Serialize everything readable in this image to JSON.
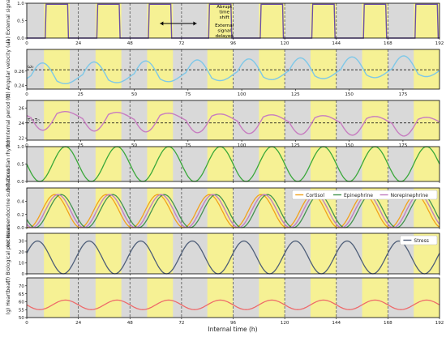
{
  "xlabel": "Internal time (h)",
  "colors": {
    "light_band": "#f6f194",
    "dark_band": "#d9d9d9",
    "dashed": "#555555",
    "pulse": "#6b4fa6",
    "omega": "#7ec8e8",
    "period": "#c77cc0",
    "circadian": "#3aa83a",
    "cortisol": "#f2a21b",
    "epinephrine": "#44944f",
    "norepinephrine": "#c07bbf",
    "stress": "#4e5e78",
    "heartbeat": "#ee6a6a",
    "annot": "#000000"
  },
  "annotation": {
    "lines": [
      "Abrupt",
      "time",
      "shift",
      "External",
      "signal",
      "delayed"
    ]
  },
  "chart_data": [
    {
      "panel": "a",
      "type": "line",
      "ylabel": "(a) External signal",
      "xlim": [
        0,
        192
      ],
      "ylim": [
        0,
        1
      ],
      "xticks": [
        0,
        24,
        48,
        72,
        96,
        120,
        144,
        168,
        192
      ],
      "yticks": [
        0,
        0.5,
        1
      ],
      "ytick_labels": [
        "0.0",
        "0.5",
        "1.0"
      ],
      "light_intervals": [
        [
          8,
          20
        ],
        [
          32,
          44
        ],
        [
          56,
          68
        ],
        [
          84,
          96
        ],
        [
          108,
          120
        ],
        [
          132,
          144
        ],
        [
          156,
          168
        ],
        [
          180,
          192
        ]
      ],
      "dashed_x": [
        24,
        48,
        72,
        96,
        120,
        144,
        168
      ],
      "series": [
        {
          "color_key": "pulse",
          "kind": "pulse_on_light"
        }
      ]
    },
    {
      "panel": "b",
      "type": "line",
      "ylabel": "(b) Angular velocity (ω)",
      "xlim": [
        0,
        192
      ],
      "ylim": [
        0.235,
        0.29
      ],
      "xticks": [
        0,
        25,
        50,
        75,
        100,
        125,
        150,
        175
      ],
      "yticks": [
        0.24,
        0.26
      ],
      "ytick_labels": [
        "0.24",
        "0.26"
      ],
      "hline": {
        "y": 0.2618,
        "label": "ω₀"
      },
      "light_intervals": [
        [
          8,
          20
        ],
        [
          32,
          44
        ],
        [
          56,
          68
        ],
        [
          84,
          96
        ],
        [
          108,
          120
        ],
        [
          132,
          144
        ],
        [
          156,
          168
        ],
        [
          180,
          192
        ]
      ],
      "dashed_x": [
        24,
        48,
        72,
        96,
        120,
        144,
        168
      ],
      "series": [
        {
          "color_key": "omega",
          "kind": "omega"
        }
      ]
    },
    {
      "panel": "c",
      "type": "line",
      "ylabel": "(c) Internal period (τ)",
      "xlim": [
        0,
        192
      ],
      "ylim": [
        21.7,
        27.0
      ],
      "xticks": [
        0,
        25,
        50,
        75,
        100,
        125,
        150,
        175
      ],
      "yticks": [
        22,
        24,
        26
      ],
      "ytick_labels": [
        "22",
        "24",
        "26"
      ],
      "hline": {
        "y": 24,
        "label": "τ=τ₀"
      },
      "light_intervals": [
        [
          8,
          20
        ],
        [
          32,
          44
        ],
        [
          56,
          68
        ],
        [
          84,
          96
        ],
        [
          108,
          120
        ],
        [
          132,
          144
        ],
        [
          156,
          168
        ],
        [
          180,
          192
        ]
      ],
      "dashed_x": [
        24,
        48,
        72,
        96,
        120,
        144,
        168
      ],
      "series": [
        {
          "color_key": "period",
          "kind": "period"
        }
      ]
    },
    {
      "panel": "d",
      "type": "line",
      "ylabel": "(d) Circadian rhythm",
      "xlim": [
        0,
        192
      ],
      "ylim": [
        0,
        1
      ],
      "yticks": [
        0,
        0.5,
        1
      ],
      "ytick_labels": [
        "0.0",
        "0.5",
        "1.0"
      ],
      "light_intervals": [
        [
          8,
          20
        ],
        [
          32,
          44
        ],
        [
          56,
          68
        ],
        [
          84,
          96
        ],
        [
          108,
          120
        ],
        [
          132,
          144
        ],
        [
          156,
          168
        ],
        [
          180,
          192
        ]
      ],
      "dashed_x": [
        24,
        48,
        72,
        96,
        120,
        144,
        168
      ],
      "series": [
        {
          "color_key": "circadian",
          "kind": "cos",
          "amp": 0.5,
          "offset": 0.5,
          "peak": 18,
          "period": 24
        }
      ]
    },
    {
      "panel": "e",
      "type": "line",
      "ylabel": "(e) Neuroendocrine substances",
      "xlim": [
        0,
        192
      ],
      "ylim": [
        0,
        0.6
      ],
      "yticks": [
        0,
        0.2,
        0.4
      ],
      "ytick_labels": [
        "0.0",
        "0.2",
        "0.4"
      ],
      "legend": {
        "placement": "top-right"
      },
      "light_intervals": [
        [
          8,
          20
        ],
        [
          32,
          44
        ],
        [
          56,
          68
        ],
        [
          84,
          96
        ],
        [
          108,
          120
        ],
        [
          132,
          144
        ],
        [
          156,
          168
        ],
        [
          180,
          192
        ]
      ],
      "dashed_x": [
        24,
        48,
        72,
        96,
        120,
        144,
        168
      ],
      "series": [
        {
          "name": "Cortisol",
          "color_key": "cortisol",
          "kind": "cos",
          "amp": 0.25,
          "offset": 0.25,
          "peak": 13,
          "period": 24
        },
        {
          "name": "Epinephrine",
          "color_key": "epinephrine",
          "kind": "cos",
          "amp": 0.25,
          "offset": 0.25,
          "peak": 16,
          "period": 24
        },
        {
          "name": "Norepinephrine",
          "color_key": "norepinephrine",
          "kind": "cos",
          "amp": 0.25,
          "offset": 0.25,
          "peak": 14.5,
          "period": 24
        }
      ]
    },
    {
      "panel": "f",
      "type": "line",
      "ylabel": "(f) Biological processes",
      "xlim": [
        0,
        192
      ],
      "ylim": [
        0,
        37
      ],
      "yticks": [
        0,
        10,
        20,
        30
      ],
      "ytick_labels": [
        "0",
        "10",
        "20",
        "30"
      ],
      "legend": {
        "placement": "top-right"
      },
      "light_intervals": [
        [
          8,
          20
        ],
        [
          32,
          44
        ],
        [
          56,
          68
        ],
        [
          84,
          96
        ],
        [
          108,
          120
        ],
        [
          132,
          144
        ],
        [
          156,
          168
        ],
        [
          180,
          192
        ]
      ],
      "dashed_x": [
        24,
        48,
        72,
        96,
        120,
        144,
        168
      ],
      "series": [
        {
          "name": "Stress",
          "color_key": "stress",
          "kind": "cos",
          "amp": 15,
          "offset": 15,
          "peak": 5,
          "period": 24
        }
      ]
    },
    {
      "panel": "g",
      "type": "line",
      "ylabel": "(g) Heartbeat",
      "xlim": [
        0,
        192
      ],
      "ylim": [
        50,
        75
      ],
      "xticks": [
        0,
        24,
        48,
        72,
        96,
        120,
        144,
        168,
        192
      ],
      "yticks": [
        50,
        55,
        60,
        65,
        70
      ],
      "ytick_labels": [
        "50",
        "55",
        "60",
        "65",
        "70"
      ],
      "light_intervals": [
        [
          8,
          20
        ],
        [
          32,
          44
        ],
        [
          56,
          68
        ],
        [
          84,
          96
        ],
        [
          108,
          120
        ],
        [
          132,
          144
        ],
        [
          156,
          168
        ],
        [
          180,
          192
        ]
      ],
      "dashed_x": [
        24,
        48,
        72,
        96,
        120,
        144,
        168
      ],
      "series": [
        {
          "color_key": "heartbeat",
          "kind": "cos",
          "amp": 3,
          "offset": 58,
          "peak": 18,
          "period": 24
        }
      ]
    }
  ]
}
